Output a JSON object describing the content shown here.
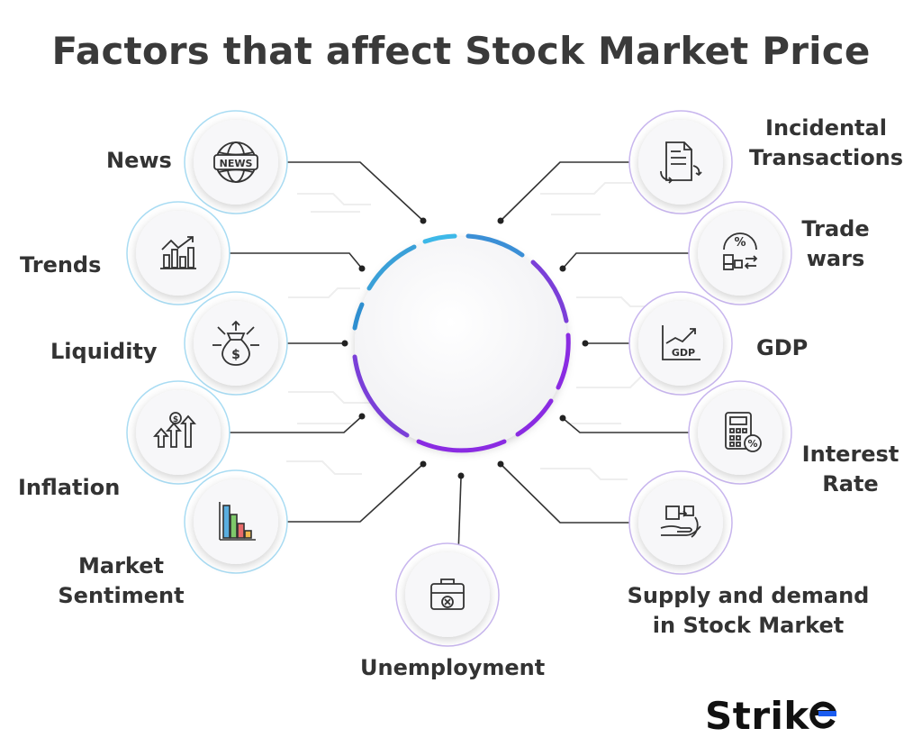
{
  "title": "Factors that affect Stock Market Price",
  "factors": [
    {
      "label_lines": [
        "News"
      ],
      "icon": "news-globe-icon"
    },
    {
      "label_lines": [
        "Trends"
      ],
      "icon": "bar-chart-up-icon"
    },
    {
      "label_lines": [
        "Liquidity"
      ],
      "icon": "money-bag-arrows-icon"
    },
    {
      "label_lines": [
        "Inflation"
      ],
      "icon": "rising-arrows-dollar-icon"
    },
    {
      "label_lines": [
        "Market",
        "Sentiment"
      ],
      "icon": "colored-bar-chart-icon"
    },
    {
      "label_lines": [
        "Unemployment"
      ],
      "icon": "briefcase-x-icon"
    },
    {
      "label_lines": [
        "Supply and demand",
        "in Stock Market"
      ],
      "icon": "hand-box-exchange-icon"
    },
    {
      "label_lines": [
        "Interest",
        "Rate"
      ],
      "icon": "calculator-percent-icon"
    },
    {
      "label_lines": [
        "GDP"
      ],
      "icon": "gdp-chart-icon"
    },
    {
      "label_lines": [
        "Trade",
        "wars"
      ],
      "icon": "percent-boxes-exchange-icon"
    },
    {
      "label_lines": [
        "Incidental",
        "Transactions"
      ],
      "icon": "document-exchange-icon"
    }
  ],
  "brand": {
    "name": "Strike",
    "text_start": "Strik",
    "accent": "#1a5cf0"
  },
  "colors": {
    "arc_blue": "#3db8e8",
    "arc_purple": "#8a2be2",
    "line": "#333333",
    "ring_left": "#8fd0ee",
    "ring_right": "#c8a8ee"
  }
}
